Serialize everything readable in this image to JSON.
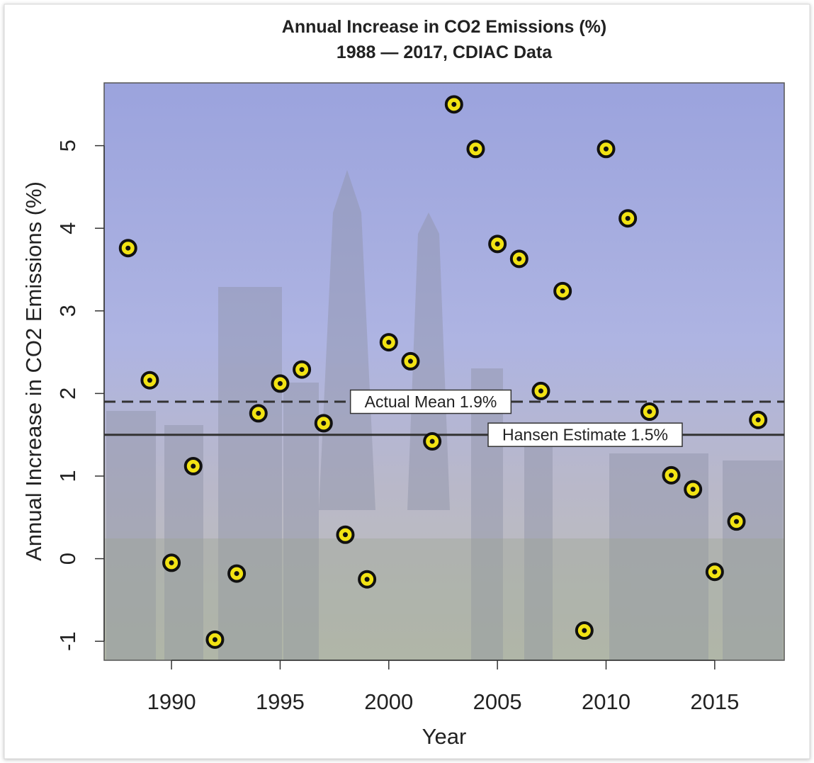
{
  "chart_data": {
    "type": "scatter",
    "title": "Annual Increase in CO2 Emissions (%)",
    "subtitle": "1988 — 2017, CDIAC Data",
    "x_label": "Year",
    "y_label": "Annual Increase in CO2 Emissions (%)",
    "x": [
      1988,
      1989,
      1990,
      1991,
      1992,
      1993,
      1994,
      1995,
      1996,
      1997,
      1998,
      1999,
      2000,
      2001,
      2002,
      2003,
      2004,
      2005,
      2006,
      2007,
      2008,
      2009,
      2010,
      2011,
      2012,
      2013,
      2014,
      2015,
      2016,
      2017
    ],
    "values": [
      3.76,
      2.16,
      -0.05,
      1.12,
      -0.98,
      -0.18,
      1.76,
      2.12,
      2.29,
      1.64,
      0.29,
      -0.25,
      2.62,
      2.39,
      1.42,
      5.5,
      4.96,
      3.81,
      3.63,
      2.03,
      3.24,
      -0.87,
      4.96,
      4.12,
      1.78,
      1.01,
      0.84,
      -0.16,
      0.45,
      1.68
    ],
    "color": "#f2e313",
    "xlim": [
      1986.9,
      2018.2
    ],
    "ylim": [
      -1.23,
      5.76
    ],
    "xticks": [
      1990,
      1995,
      2000,
      2005,
      2010,
      2015
    ],
    "yticks": [
      -1,
      0,
      1,
      2,
      3,
      4,
      5
    ],
    "reference_lines": [
      {
        "value": 1.9,
        "label": "Actual Mean 1.9%",
        "style": "dashed"
      },
      {
        "value": 1.5,
        "label": "Hansen Estimate 1.5%",
        "style": "solid"
      }
    ]
  }
}
